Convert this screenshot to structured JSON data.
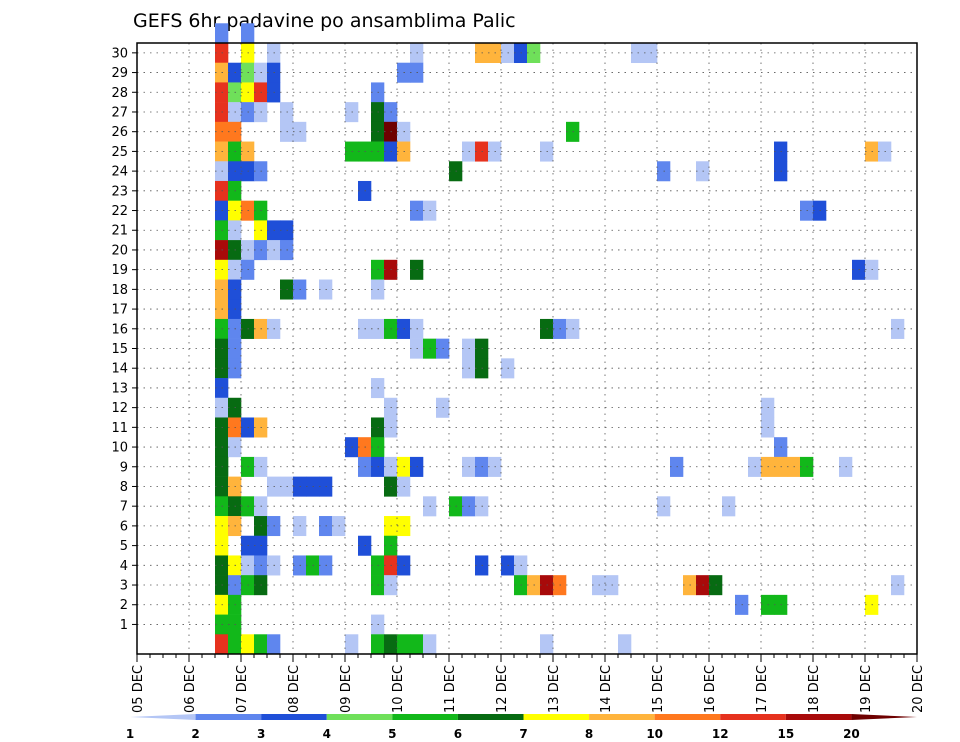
{
  "chart_data": {
    "type": "heatmap",
    "title": "GEFS 6hr padavine po ansamblima Palic",
    "xlabel": "",
    "ylabel": "",
    "x_ticks": [
      "05 DEC",
      "06 DEC",
      "07 DEC",
      "08 DEC",
      "09 DEC",
      "10 DEC",
      "11 DEC",
      "12 DEC",
      "13 DEC",
      "14 DEC",
      "15 DEC",
      "16 DEC",
      "17 DEC",
      "18 DEC",
      "19 DEC",
      "20 DEC"
    ],
    "y_ticks": [
      "1",
      "2",
      "3",
      "4",
      "5",
      "6",
      "7",
      "8",
      "9",
      "10",
      "11",
      "12",
      "13",
      "14",
      "15",
      "16",
      "17",
      "18",
      "19",
      "20",
      "21",
      "22",
      "23",
      "24",
      "25",
      "26",
      "27",
      "28",
      "29",
      "30"
    ],
    "x_unit": "6-hour step",
    "n_steps": 60,
    "n_members": 31,
    "grid": true,
    "legend": {
      "position": "bottom",
      "labels": [
        "1",
        "2",
        "3",
        "4",
        "5",
        "6",
        "7",
        "8",
        "10",
        "12",
        "15",
        "20"
      ],
      "colors": [
        "#b4c6f5",
        "#5f86ee",
        "#1f4fd8",
        "#6fe05a",
        "#12b81a",
        "#076b12",
        "#ffff00",
        "#ffb43c",
        "#ff781e",
        "#e6321e",
        "#a80a0a",
        "#6e0000"
      ]
    },
    "cell_format": "[step, member, colorClass] ; step 0 = 05 DEC 00z, member 0 = unlabeled row, colorClass 0-11 indexes legend.colors",
    "cells": [
      [
        6,
        30,
        1
      ],
      [
        8,
        30,
        1
      ],
      [
        6,
        29,
        9
      ],
      [
        8,
        29,
        6
      ],
      [
        10,
        29,
        0
      ],
      [
        21,
        29,
        0
      ],
      [
        26,
        29,
        7
      ],
      [
        27,
        29,
        7
      ],
      [
        28,
        29,
        0
      ],
      [
        29,
        29,
        2
      ],
      [
        30,
        29,
        3
      ],
      [
        38,
        29,
        0
      ],
      [
        39,
        29,
        0
      ],
      [
        6,
        28,
        7
      ],
      [
        7,
        28,
        2
      ],
      [
        8,
        28,
        3
      ],
      [
        9,
        28,
        0
      ],
      [
        10,
        28,
        2
      ],
      [
        20,
        28,
        1
      ],
      [
        21,
        28,
        1
      ],
      [
        6,
        27,
        9
      ],
      [
        7,
        27,
        3
      ],
      [
        8,
        27,
        6
      ],
      [
        9,
        27,
        9
      ],
      [
        10,
        27,
        2
      ],
      [
        18,
        27,
        1
      ],
      [
        6,
        26,
        9
      ],
      [
        7,
        26,
        0
      ],
      [
        8,
        26,
        1
      ],
      [
        9,
        26,
        0
      ],
      [
        11,
        26,
        0
      ],
      [
        16,
        26,
        0
      ],
      [
        18,
        26,
        5
      ],
      [
        19,
        26,
        1
      ],
      [
        6,
        25,
        8
      ],
      [
        7,
        25,
        8
      ],
      [
        11,
        25,
        0
      ],
      [
        12,
        25,
        0
      ],
      [
        18,
        25,
        5
      ],
      [
        19,
        25,
        11
      ],
      [
        20,
        25,
        0
      ],
      [
        33,
        25,
        4
      ],
      [
        6,
        24,
        7
      ],
      [
        7,
        24,
        4
      ],
      [
        8,
        24,
        7
      ],
      [
        16,
        24,
        4
      ],
      [
        17,
        24,
        4
      ],
      [
        18,
        24,
        4
      ],
      [
        19,
        24,
        2
      ],
      [
        20,
        24,
        7
      ],
      [
        25,
        24,
        0
      ],
      [
        26,
        24,
        9
      ],
      [
        27,
        24,
        0
      ],
      [
        31,
        24,
        0
      ],
      [
        49,
        24,
        2
      ],
      [
        56,
        24,
        7
      ],
      [
        57,
        24,
        0
      ],
      [
        6,
        23,
        0
      ],
      [
        7,
        23,
        2
      ],
      [
        8,
        23,
        2
      ],
      [
        9,
        23,
        1
      ],
      [
        24,
        23,
        5
      ],
      [
        40,
        23,
        1
      ],
      [
        43,
        23,
        0
      ],
      [
        49,
        23,
        2
      ],
      [
        6,
        22,
        9
      ],
      [
        7,
        22,
        4
      ],
      [
        17,
        22,
        2
      ],
      [
        6,
        21,
        2
      ],
      [
        7,
        21,
        6
      ],
      [
        8,
        21,
        8
      ],
      [
        9,
        21,
        4
      ],
      [
        21,
        21,
        1
      ],
      [
        22,
        21,
        0
      ],
      [
        51,
        21,
        1
      ],
      [
        52,
        21,
        2
      ],
      [
        6,
        20,
        4
      ],
      [
        7,
        20,
        0
      ],
      [
        9,
        20,
        6
      ],
      [
        10,
        20,
        2
      ],
      [
        11,
        20,
        2
      ],
      [
        6,
        19,
        10
      ],
      [
        7,
        19,
        5
      ],
      [
        8,
        19,
        0
      ],
      [
        9,
        19,
        1
      ],
      [
        10,
        19,
        0
      ],
      [
        11,
        19,
        1
      ],
      [
        6,
        18,
        6
      ],
      [
        7,
        18,
        0
      ],
      [
        8,
        18,
        1
      ],
      [
        18,
        18,
        4
      ],
      [
        19,
        18,
        10
      ],
      [
        21,
        18,
        5
      ],
      [
        55,
        18,
        2
      ],
      [
        56,
        18,
        0
      ],
      [
        6,
        17,
        7
      ],
      [
        7,
        17,
        2
      ],
      [
        11,
        17,
        5
      ],
      [
        12,
        17,
        1
      ],
      [
        14,
        17,
        0
      ],
      [
        18,
        17,
        0
      ],
      [
        6,
        16,
        7
      ],
      [
        7,
        16,
        2
      ],
      [
        6,
        15,
        4
      ],
      [
        7,
        15,
        1
      ],
      [
        8,
        15,
        5
      ],
      [
        9,
        15,
        7
      ],
      [
        10,
        15,
        0
      ],
      [
        17,
        15,
        0
      ],
      [
        18,
        15,
        0
      ],
      [
        19,
        15,
        4
      ],
      [
        20,
        15,
        2
      ],
      [
        21,
        15,
        0
      ],
      [
        31,
        15,
        5
      ],
      [
        32,
        15,
        1
      ],
      [
        33,
        15,
        0
      ],
      [
        58,
        15,
        0
      ],
      [
        6,
        14,
        5
      ],
      [
        7,
        14,
        1
      ],
      [
        21,
        14,
        0
      ],
      [
        22,
        14,
        4
      ],
      [
        23,
        14,
        1
      ],
      [
        25,
        14,
        0
      ],
      [
        26,
        14,
        5
      ],
      [
        6,
        13,
        5
      ],
      [
        7,
        13,
        1
      ],
      [
        25,
        13,
        0
      ],
      [
        26,
        13,
        5
      ],
      [
        28,
        13,
        0
      ],
      [
        6,
        12,
        2
      ],
      [
        18,
        12,
        0
      ],
      [
        6,
        11,
        0
      ],
      [
        7,
        11,
        5
      ],
      [
        19,
        11,
        0
      ],
      [
        23,
        11,
        0
      ],
      [
        48,
        11,
        0
      ],
      [
        6,
        10,
        5
      ],
      [
        7,
        10,
        8
      ],
      [
        8,
        10,
        2
      ],
      [
        9,
        10,
        7
      ],
      [
        18,
        10,
        5
      ],
      [
        19,
        10,
        0
      ],
      [
        48,
        10,
        0
      ],
      [
        6,
        9,
        5
      ],
      [
        7,
        9,
        0
      ],
      [
        16,
        9,
        2
      ],
      [
        17,
        9,
        8
      ],
      [
        18,
        9,
        4
      ],
      [
        49,
        9,
        1
      ],
      [
        6,
        8,
        5
      ],
      [
        8,
        8,
        4
      ],
      [
        9,
        8,
        0
      ],
      [
        17,
        8,
        1
      ],
      [
        18,
        8,
        2
      ],
      [
        19,
        8,
        0
      ],
      [
        20,
        8,
        6
      ],
      [
        21,
        8,
        2
      ],
      [
        25,
        8,
        0
      ],
      [
        26,
        8,
        1
      ],
      [
        27,
        8,
        0
      ],
      [
        41,
        8,
        1
      ],
      [
        47,
        8,
        0
      ],
      [
        48,
        8,
        7
      ],
      [
        49,
        8,
        7
      ],
      [
        50,
        8,
        7
      ],
      [
        51,
        8,
        4
      ],
      [
        54,
        8,
        0
      ],
      [
        6,
        7,
        5
      ],
      [
        7,
        7,
        7
      ],
      [
        10,
        7,
        0
      ],
      [
        11,
        7,
        0
      ],
      [
        12,
        7,
        2
      ],
      [
        13,
        7,
        2
      ],
      [
        14,
        7,
        2
      ],
      [
        19,
        7,
        5
      ],
      [
        20,
        7,
        0
      ],
      [
        6,
        6,
        4
      ],
      [
        7,
        6,
        5
      ],
      [
        8,
        6,
        4
      ],
      [
        9,
        6,
        0
      ],
      [
        22,
        6,
        0
      ],
      [
        24,
        6,
        4
      ],
      [
        25,
        6,
        1
      ],
      [
        26,
        6,
        0
      ],
      [
        40,
        6,
        0
      ],
      [
        45,
        6,
        0
      ],
      [
        6,
        5,
        6
      ],
      [
        7,
        5,
        7
      ],
      [
        9,
        5,
        5
      ],
      [
        10,
        5,
        1
      ],
      [
        12,
        5,
        0
      ],
      [
        14,
        5,
        1
      ],
      [
        15,
        5,
        0
      ],
      [
        19,
        5,
        6
      ],
      [
        20,
        5,
        6
      ],
      [
        6,
        4,
        6
      ],
      [
        8,
        4,
        2
      ],
      [
        9,
        4,
        2
      ],
      [
        17,
        4,
        2
      ],
      [
        19,
        4,
        4
      ],
      [
        6,
        3,
        5
      ],
      [
        7,
        3,
        6
      ],
      [
        8,
        3,
        0
      ],
      [
        9,
        3,
        1
      ],
      [
        10,
        3,
        0
      ],
      [
        12,
        3,
        1
      ],
      [
        13,
        3,
        4
      ],
      [
        14,
        3,
        1
      ],
      [
        18,
        3,
        4
      ],
      [
        19,
        3,
        9
      ],
      [
        20,
        3,
        2
      ],
      [
        26,
        3,
        2
      ],
      [
        28,
        3,
        2
      ],
      [
        29,
        3,
        0
      ],
      [
        6,
        2,
        5
      ],
      [
        7,
        2,
        1
      ],
      [
        8,
        2,
        4
      ],
      [
        9,
        2,
        5
      ],
      [
        18,
        2,
        4
      ],
      [
        19,
        2,
        0
      ],
      [
        29,
        2,
        4
      ],
      [
        30,
        2,
        7
      ],
      [
        31,
        2,
        10
      ],
      [
        32,
        2,
        8
      ],
      [
        35,
        2,
        0
      ],
      [
        36,
        2,
        0
      ],
      [
        42,
        2,
        7
      ],
      [
        43,
        2,
        10
      ],
      [
        44,
        2,
        5
      ],
      [
        58,
        2,
        0
      ],
      [
        6,
        1,
        6
      ],
      [
        7,
        1,
        4
      ],
      [
        46,
        1,
        1
      ],
      [
        48,
        1,
        4
      ],
      [
        49,
        1,
        4
      ],
      [
        56,
        1,
        6
      ],
      [
        6,
        0,
        4
      ],
      [
        7,
        0,
        4
      ],
      [
        18,
        0,
        0
      ],
      [
        6,
        -1,
        9
      ],
      [
        7,
        -1,
        4
      ],
      [
        8,
        -1,
        6
      ],
      [
        9,
        -1,
        4
      ],
      [
        10,
        -1,
        1
      ],
      [
        16,
        -1,
        0
      ],
      [
        18,
        -1,
        4
      ],
      [
        19,
        -1,
        5
      ],
      [
        20,
        -1,
        4
      ],
      [
        21,
        -1,
        4
      ],
      [
        22,
        -1,
        0
      ],
      [
        31,
        -1,
        0
      ],
      [
        37,
        -1,
        0
      ]
    ]
  }
}
